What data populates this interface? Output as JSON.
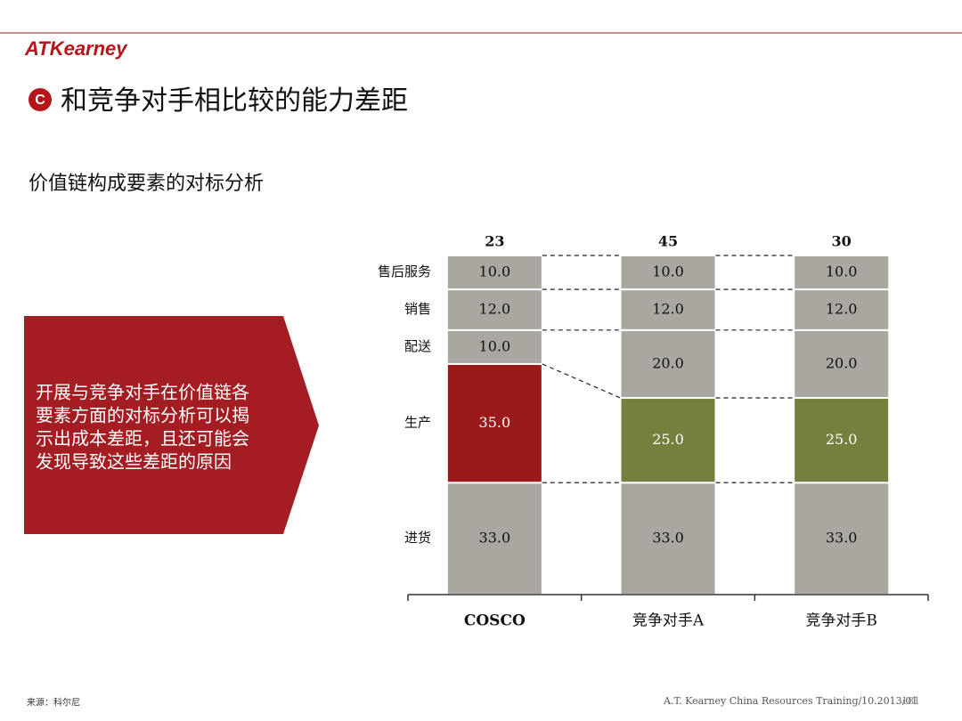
{
  "logo": "ATKearney",
  "badge": "C",
  "title": "和竞争对手相比较的能力差距",
  "subtitle": "价值链构成要素的对标分析",
  "callout": [
    "开展与竞争对手在价值链各",
    "要素方面的对标分析可以揭",
    "示出成本差距，且还可能会",
    "发现导致这些差距的原因"
  ],
  "source": "来源：科尔尼",
  "footer": "A.T. Kearney  China Resources  Training/10.2013/01",
  "page_number": "181",
  "chart_data": {
    "type": "stacked_bar",
    "categories": [
      "COSCO",
      "竞争对手A",
      "竞争对手B"
    ],
    "top_labels": [
      "23",
      "45",
      "30"
    ],
    "ylim": [
      0,
      100
    ],
    "series": [
      {
        "name": "进货",
        "color": "#aaa7a0",
        "values": [
          33,
          33,
          33
        ],
        "value_labels": [
          "33.0",
          "33.0",
          "33.0"
        ]
      },
      {
        "name": "生产",
        "colors": [
          "#9a1a1c",
          "#767f3e",
          "#767f3e"
        ],
        "values": [
          35,
          25,
          25
        ],
        "value_labels": [
          "35.0",
          "25.0",
          "25.0"
        ]
      },
      {
        "name": "配送",
        "color": "#aaa7a0",
        "values": [
          10,
          20,
          20
        ],
        "value_labels": [
          "10.0",
          "20.0",
          "20.0"
        ]
      },
      {
        "name": "销售",
        "color": "#aaa7a0",
        "values": [
          12,
          12,
          12
        ],
        "value_labels": [
          "12.0",
          "12.0",
          "12.0"
        ]
      },
      {
        "name": "售后服务",
        "color": "#aaa7a0",
        "values": [
          10,
          10,
          10
        ],
        "value_labels": [
          "10.0",
          "10.0",
          "10.0"
        ]
      }
    ]
  }
}
